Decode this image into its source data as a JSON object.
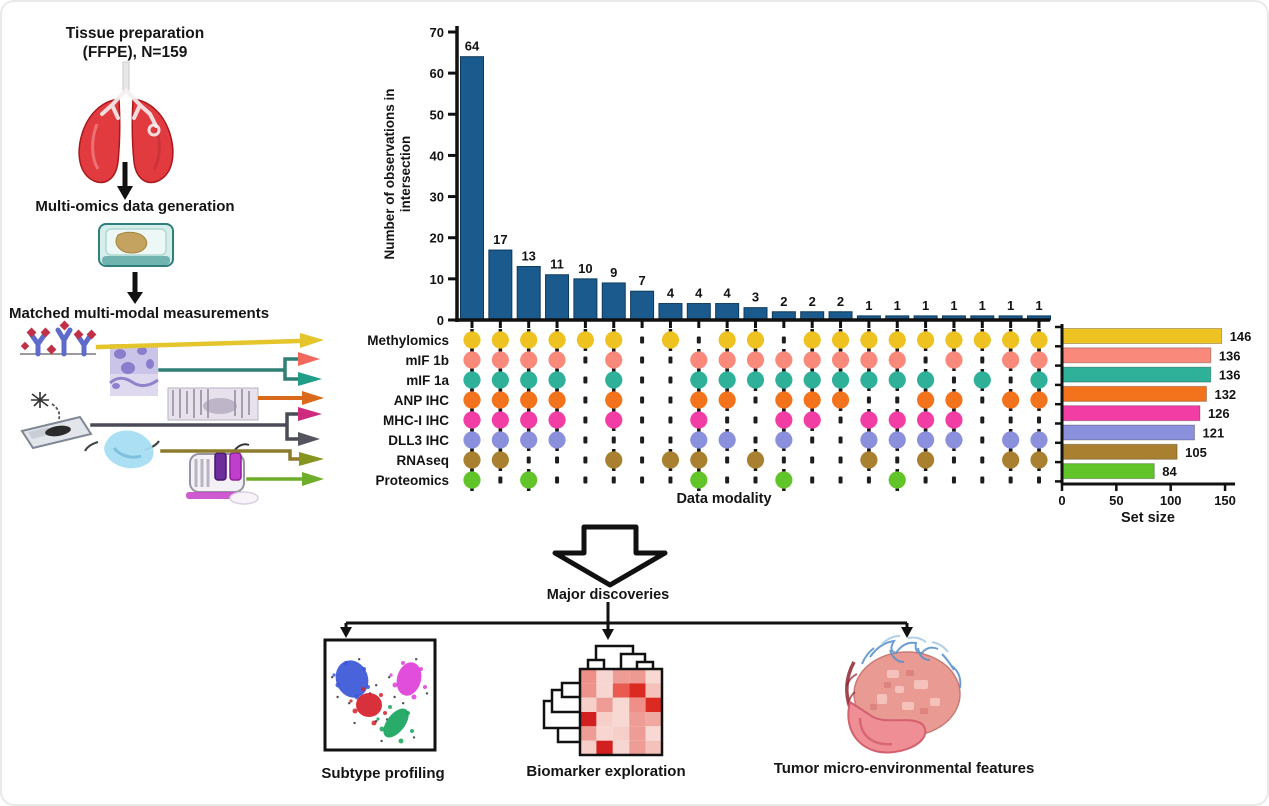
{
  "left_panel": {
    "step1_line1": "Tissue preparation",
    "step1_line2": "(FFPE), N=159",
    "step2": "Multi-omics data generation",
    "step3": "Matched multi-modal measurements",
    "illustrations": [
      "lungs",
      "tissue-cassette",
      "antibody-assay",
      "histology-stain",
      "tissue-section",
      "dissection-slide",
      "tissue-sample",
      "sequencing-instrument"
    ]
  },
  "chart_data": {
    "type": "upset",
    "title": "",
    "ylabel": "Number of observations in intersection",
    "xlabel": "Data modality",
    "ylim": [
      0,
      70
    ],
    "yticks": [
      0,
      10,
      20,
      30,
      40,
      50,
      60,
      70
    ],
    "bar_color": "#1B5A8C",
    "absent_marker_color": "#1d1d1d",
    "sets": [
      {
        "name": "Methylomics",
        "size": 146,
        "color": "#EDC221"
      },
      {
        "name": "mIF 1b",
        "size": 136,
        "color": "#F8897B"
      },
      {
        "name": "mIF 1a",
        "size": 136,
        "color": "#2FB199"
      },
      {
        "name": "ANP IHC",
        "size": 132,
        "color": "#F3731C"
      },
      {
        "name": "MHC-I IHC",
        "size": 126,
        "color": "#F23DA5"
      },
      {
        "name": "DLL3 IHC",
        "size": 121,
        "color": "#8B90DC"
      },
      {
        "name": "RNAseq",
        "size": 105,
        "color": "#A8802F"
      },
      {
        "name": "Proteomics",
        "size": 84,
        "color": "#61C52A"
      }
    ],
    "intersections": [
      {
        "value": 64,
        "members": [
          0,
          1,
          2,
          3,
          4,
          5,
          6,
          7
        ]
      },
      {
        "value": 17,
        "members": [
          0,
          1,
          2,
          3,
          4,
          5,
          6
        ]
      },
      {
        "value": 13,
        "members": [
          0,
          1,
          2,
          3,
          4,
          5,
          7
        ]
      },
      {
        "value": 11,
        "members": [
          0,
          1,
          2,
          3,
          4,
          5
        ]
      },
      {
        "value": 10,
        "members": [
          0
        ]
      },
      {
        "value": 9,
        "members": [
          0,
          1,
          2,
          3,
          4,
          6
        ]
      },
      {
        "value": 7,
        "members": []
      },
      {
        "value": 4,
        "members": [
          0,
          6
        ]
      },
      {
        "value": 4,
        "members": [
          1,
          2,
          3,
          4,
          5,
          6,
          7
        ]
      },
      {
        "value": 4,
        "members": [
          0,
          1,
          2,
          3,
          5
        ]
      },
      {
        "value": 3,
        "members": [
          0,
          1,
          2,
          6
        ]
      },
      {
        "value": 2,
        "members": [
          1,
          2,
          3,
          4,
          5,
          7
        ]
      },
      {
        "value": 2,
        "members": [
          0,
          1,
          2,
          3,
          4
        ]
      },
      {
        "value": 2,
        "members": [
          0,
          1,
          2,
          3
        ]
      },
      {
        "value": 1,
        "members": [
          0,
          1,
          2,
          4,
          5,
          6
        ]
      },
      {
        "value": 1,
        "members": [
          0,
          1,
          2,
          4,
          5,
          7
        ]
      },
      {
        "value": 1,
        "members": [
          0,
          2,
          3,
          4,
          5,
          6
        ]
      },
      {
        "value": 1,
        "members": [
          0,
          1,
          3,
          4,
          5
        ]
      },
      {
        "value": 1,
        "members": [
          0,
          2
        ]
      },
      {
        "value": 1,
        "members": [
          0,
          1,
          3,
          5,
          6
        ]
      },
      {
        "value": 1,
        "members": [
          0,
          1,
          2,
          3,
          5,
          6
        ]
      }
    ],
    "set_size_axis": {
      "label": "Set size",
      "ticks": [
        0,
        50,
        100,
        150
      ],
      "max": 150
    }
  },
  "bottom": {
    "arrow_label": "Major discoveries",
    "items": [
      {
        "label": "Subtype profiling"
      },
      {
        "label": "Biomarker exploration"
      },
      {
        "label": "Tumor micro-environmental features"
      }
    ],
    "subtype_cluster_colors": [
      "#3A57D8",
      "#DD3FD8",
      "#D6202B",
      "#17A45C"
    ],
    "biomarker_heatmap": [
      [
        "#EE8F88",
        "#F7D5D0",
        "#EE9D96",
        "#ED9A93",
        "#F7D8D2"
      ],
      [
        "#EE938C",
        "#F7D5D0",
        "#E95A50",
        "#DB2A22",
        "#F4C1BB"
      ],
      [
        "#F6CFC9",
        "#EE9D96",
        "#F7D8D2",
        "#EE8F88",
        "#DB2A22"
      ],
      [
        "#D21F1F",
        "#F6CFC9",
        "#F7D8D2",
        "#EE9D96",
        "#F0A9A2"
      ],
      [
        "#EE9D96",
        "#F7D5D0",
        "#F6CFC9",
        "#EE9D96",
        "#F7D8D2"
      ],
      [
        "#F6CFC9",
        "#D21F1F",
        "#F7D5D0",
        "#EE9D96",
        "#F4C1BB"
      ]
    ]
  }
}
